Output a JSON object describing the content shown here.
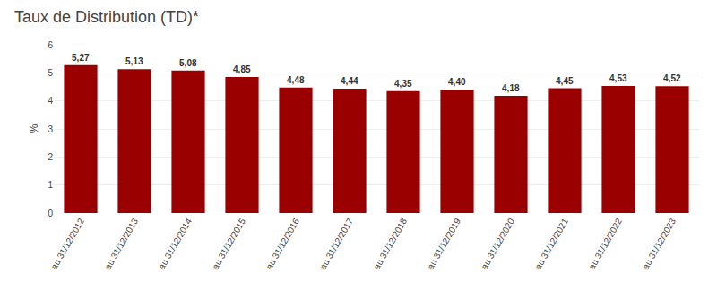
{
  "chart_data": {
    "type": "bar",
    "title": "Taux de Distribution (TD)*",
    "categories": [
      "au 31/12/2012",
      "au 31/12/2013",
      "au 31/12/2014",
      "au 31/12/2015",
      "au 31/12/2016",
      "au 31/12/2017",
      "au 31/12/2018",
      "au 31/12/2019",
      "au 31/12/2020",
      "au 31/12/2021",
      "au 31/12/2022",
      "au 31/12/2023"
    ],
    "values": [
      5.27,
      5.13,
      5.08,
      4.85,
      4.48,
      4.44,
      4.35,
      4.4,
      4.18,
      4.45,
      4.53,
      4.52
    ],
    "value_labels": [
      "5,27",
      "5,13",
      "5,08",
      "4,85",
      "4,48",
      "4,44",
      "4,35",
      "4,40",
      "4,18",
      "4,45",
      "4,53",
      "4,52"
    ],
    "data_labels": true,
    "color": "#9B0000",
    "ylabel": "%",
    "ylim": [
      0,
      6
    ],
    "yticks": [
      0,
      1,
      2,
      3,
      4,
      5,
      6
    ],
    "grid": true
  }
}
